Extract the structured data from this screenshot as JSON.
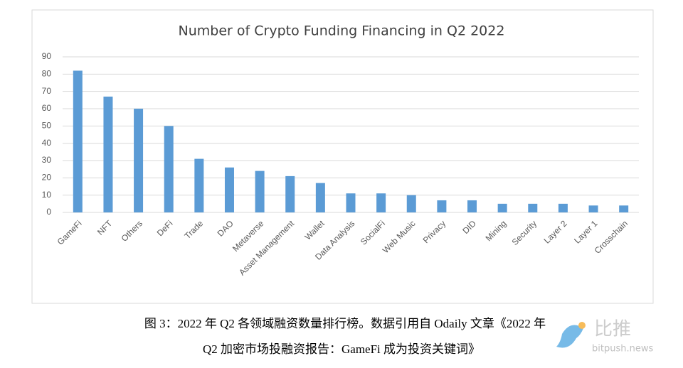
{
  "chart_data": {
    "type": "bar",
    "title": "Number of Crypto Funding Financing in Q2 2022",
    "categories": [
      "GameFi",
      "NFT",
      "Others",
      "DeFi",
      "Trade",
      "DAO",
      "Metaverse",
      "Asset Management",
      "Wallet",
      "Data Analysis",
      "SocialFi",
      "Web Music",
      "Privacy",
      "DID",
      "Mining",
      "Security",
      "Layer 2",
      "Layer 1",
      "Crosschain"
    ],
    "values": [
      82,
      67,
      60,
      50,
      31,
      26,
      24,
      21,
      17,
      11,
      11,
      10,
      7,
      7,
      5,
      5,
      5,
      4,
      4
    ],
    "color": "#5b9bd5",
    "ylim": [
      0,
      90
    ],
    "yticks": [
      0,
      10,
      20,
      30,
      40,
      50,
      60,
      70,
      80,
      90
    ],
    "grid": true
  },
  "caption": {
    "lines": [
      "图 3：2022 年 Q2 各领域融资数量排行榜。数据引用自 Odaily 文章《2022 年",
      "Q2 加密市场投融资报告：GameFi 成为投资关键词》"
    ]
  },
  "watermark": {
    "logo": "比推",
    "site": "bitpush.news"
  }
}
